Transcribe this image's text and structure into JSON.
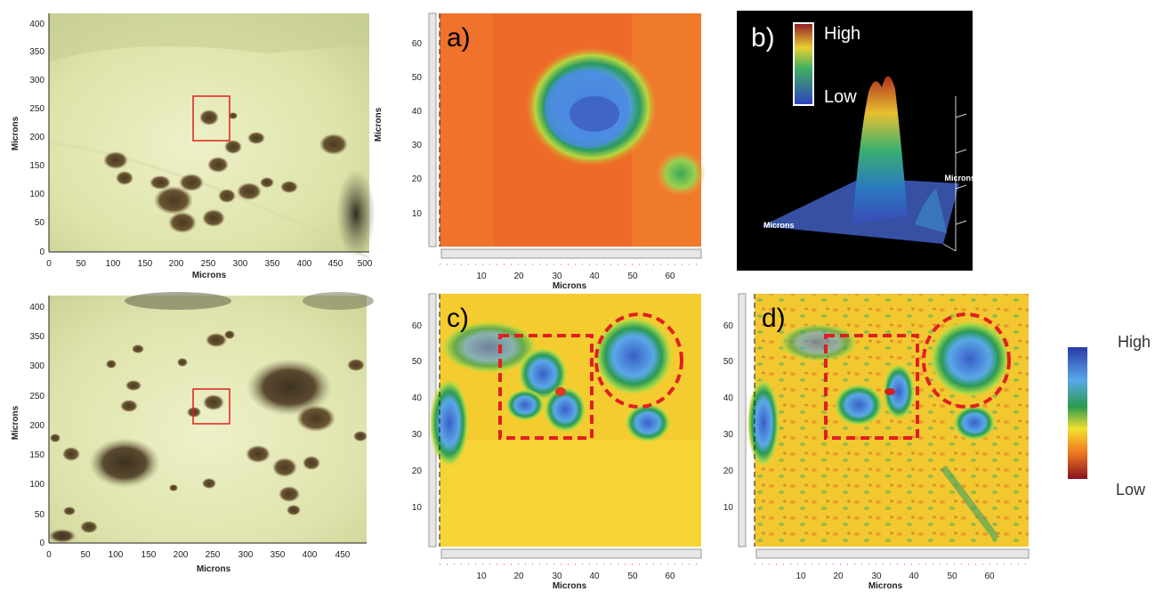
{
  "micro_top": {
    "ylabel": "Microns",
    "xlabel": "Microns",
    "yticks": [
      "0",
      "50",
      "100",
      "150",
      "200",
      "250",
      "300",
      "350",
      "400"
    ],
    "xticks": [
      "0",
      "50",
      "100",
      "150",
      "200",
      "250",
      "300",
      "350",
      "400",
      "450",
      "500"
    ]
  },
  "micro_bottom": {
    "ylabel": "Microns",
    "xlabel": "Microns",
    "yticks": [
      "0",
      "50",
      "100",
      "150",
      "200",
      "250",
      "300",
      "350",
      "400"
    ],
    "xticks": [
      "0",
      "50",
      "100",
      "150",
      "200",
      "250",
      "300",
      "350",
      "400",
      "450"
    ]
  },
  "map_a": {
    "label": "a)",
    "ylabel": "Microns",
    "xlabel": "Microns",
    "yticks": [
      "10",
      "20",
      "30",
      "40",
      "50",
      "60"
    ],
    "xticks": [
      "10",
      "20",
      "30",
      "40",
      "50",
      "60"
    ]
  },
  "map_c": {
    "label": "c)",
    "xlabel": "Microns",
    "yticks": [
      "10",
      "20",
      "30",
      "40",
      "50",
      "60"
    ],
    "xticks": [
      "10",
      "20",
      "30",
      "40",
      "50",
      "60"
    ]
  },
  "map_d": {
    "label": "d)",
    "xlabel": "Microns",
    "yticks": [
      "10",
      "20",
      "30",
      "40",
      "50",
      "60"
    ],
    "xticks": [
      "10",
      "20",
      "30",
      "40",
      "50",
      "60"
    ]
  },
  "panel_b": {
    "label": "b)",
    "high": "High",
    "low": "Low",
    "axis_label_left": "Microns",
    "axis_label_right": "Microns"
  },
  "legend": {
    "high": "High",
    "low": "Low"
  },
  "colors": {
    "scale_high": "#2a3aa8",
    "scale_mid_blue": "#5aa8e8",
    "scale_green": "#2a9a50",
    "scale_yellow": "#f2e030",
    "scale_orange": "#f07a20",
    "scale_low": "#8a1020",
    "box": "#e02020",
    "dashed": "#e02020"
  }
}
